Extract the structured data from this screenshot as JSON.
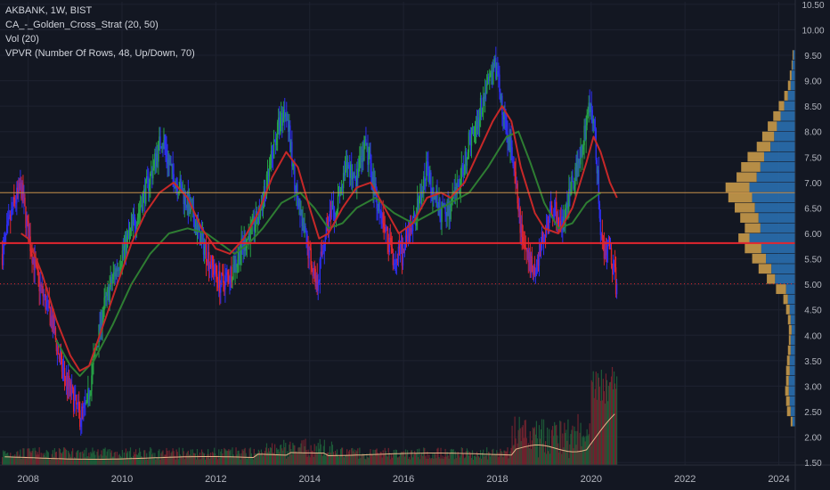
{
  "legend": {
    "symbol": "AKBANK, 1W, BIST",
    "indicator1": "CA_-_Golden_Cross_Strat (20, 50)",
    "indicator2": "Vol (20)",
    "indicator3": "VPVR (Number Of Rows, 48, Up/Down, 70)"
  },
  "colors": {
    "background": "#131722",
    "grid": "#1e2230",
    "axis_text": "#b2b5be",
    "up_candle": "#26a146",
    "down_candle": "#e3262f",
    "neutral_candle": "#2d2ef0",
    "ma_fast": "#c62828",
    "ma_slow": "#2e7d32",
    "vol_ma": "#e8b48a",
    "vpvr_up": "#2a6fb0",
    "vpvr_down": "#d4a24c",
    "line_680": "#c8914a",
    "line_581": "#e3262f",
    "line_501": "#e3262f"
  },
  "chart_data": {
    "type": "candlestick",
    "x_axis": {
      "ticks": [
        "2008",
        "2010",
        "2012",
        "2014",
        "2016",
        "2018",
        "2020",
        "2022",
        "2024"
      ],
      "range": [
        2007.4,
        2024.35
      ]
    },
    "y_axis": {
      "ticks": [
        "1.50",
        "2.00",
        "2.50",
        "3.00",
        "3.50",
        "4.00",
        "4.50",
        "5.00",
        "5.50",
        "6.00",
        "6.50",
        "7.00",
        "7.50",
        "8.00",
        "8.50",
        "9.00",
        "9.50",
        "10.00",
        "10.50"
      ],
      "range": [
        1.45,
        10.55
      ]
    },
    "price_path": [
      [
        2007.45,
        5.6
      ],
      [
        2007.7,
        6.6
      ],
      [
        2007.85,
        6.9
      ],
      [
        2008.0,
        6.0
      ],
      [
        2008.2,
        5.1
      ],
      [
        2008.5,
        4.3
      ],
      [
        2008.7,
        3.4
      ],
      [
        2008.9,
        2.9
      ],
      [
        2009.1,
        2.4
      ],
      [
        2009.25,
        2.6
      ],
      [
        2009.4,
        3.5
      ],
      [
        2009.6,
        4.5
      ],
      [
        2009.8,
        5.1
      ],
      [
        2010.0,
        5.6
      ],
      [
        2010.3,
        6.3
      ],
      [
        2010.6,
        7.1
      ],
      [
        2010.85,
        7.9
      ],
      [
        2011.05,
        7.2
      ],
      [
        2011.3,
        6.8
      ],
      [
        2011.6,
        6.1
      ],
      [
        2011.9,
        5.4
      ],
      [
        2012.1,
        5.0
      ],
      [
        2012.3,
        5.2
      ],
      [
        2012.6,
        5.8
      ],
      [
        2012.9,
        6.3
      ],
      [
        2013.1,
        7.0
      ],
      [
        2013.3,
        8.0
      ],
      [
        2013.5,
        8.5
      ],
      [
        2013.6,
        7.6
      ],
      [
        2013.8,
        6.3
      ],
      [
        2014.0,
        5.6
      ],
      [
        2014.15,
        5.0
      ],
      [
        2014.35,
        6.1
      ],
      [
        2014.6,
        6.6
      ],
      [
        2014.8,
        7.3
      ],
      [
        2015.0,
        7.1
      ],
      [
        2015.2,
        7.7
      ],
      [
        2015.4,
        6.8
      ],
      [
        2015.6,
        6.1
      ],
      [
        2015.8,
        5.5
      ],
      [
        2016.0,
        5.6
      ],
      [
        2016.2,
        6.2
      ],
      [
        2016.4,
        6.8
      ],
      [
        2016.5,
        7.3
      ],
      [
        2016.6,
        6.9
      ],
      [
        2016.8,
        6.4
      ],
      [
        2017.0,
        6.5
      ],
      [
        2017.2,
        7.0
      ],
      [
        2017.4,
        7.8
      ],
      [
        2017.6,
        8.3
      ],
      [
        2017.8,
        9.0
      ],
      [
        2018.0,
        9.3
      ],
      [
        2018.1,
        8.4
      ],
      [
        2018.3,
        7.6
      ],
      [
        2018.5,
        6.1
      ],
      [
        2018.65,
        5.5
      ],
      [
        2018.8,
        5.3
      ],
      [
        2019.0,
        6.0
      ],
      [
        2019.2,
        6.5
      ],
      [
        2019.4,
        6.1
      ],
      [
        2019.6,
        7.0
      ],
      [
        2019.8,
        7.7
      ],
      [
        2019.9,
        8.2
      ],
      [
        2020.0,
        8.6
      ],
      [
        2020.1,
        7.7
      ],
      [
        2020.2,
        6.1
      ],
      [
        2020.3,
        5.6
      ],
      [
        2020.4,
        5.7
      ],
      [
        2020.55,
        4.9
      ]
    ],
    "ma_fast": [
      [
        2007.85,
        6.0
      ],
      [
        2008.0,
        5.9
      ],
      [
        2008.3,
        5.2
      ],
      [
        2008.6,
        4.3
      ],
      [
        2008.9,
        3.6
      ],
      [
        2009.1,
        3.3
      ],
      [
        2009.3,
        3.4
      ],
      [
        2009.6,
        4.2
      ],
      [
        2009.9,
        5.0
      ],
      [
        2010.2,
        5.8
      ],
      [
        2010.5,
        6.4
      ],
      [
        2010.8,
        6.8
      ],
      [
        2011.1,
        7.0
      ],
      [
        2011.4,
        6.7
      ],
      [
        2011.7,
        6.1
      ],
      [
        2012.0,
        5.7
      ],
      [
        2012.3,
        5.6
      ],
      [
        2012.6,
        5.9
      ],
      [
        2012.9,
        6.4
      ],
      [
        2013.2,
        7.1
      ],
      [
        2013.5,
        7.6
      ],
      [
        2013.75,
        7.3
      ],
      [
        2014.0,
        6.5
      ],
      [
        2014.2,
        5.9
      ],
      [
        2014.4,
        6.0
      ],
      [
        2014.7,
        6.5
      ],
      [
        2015.0,
        6.9
      ],
      [
        2015.3,
        7.0
      ],
      [
        2015.6,
        6.5
      ],
      [
        2015.9,
        6.0
      ],
      [
        2016.2,
        6.2
      ],
      [
        2016.5,
        6.7
      ],
      [
        2016.8,
        6.8
      ],
      [
        2017.0,
        6.7
      ],
      [
        2017.3,
        7.0
      ],
      [
        2017.6,
        7.6
      ],
      [
        2017.9,
        8.2
      ],
      [
        2018.1,
        8.5
      ],
      [
        2018.3,
        8.2
      ],
      [
        2018.5,
        7.3
      ],
      [
        2018.8,
        6.4
      ],
      [
        2019.0,
        6.1
      ],
      [
        2019.3,
        6.0
      ],
      [
        2019.6,
        6.5
      ],
      [
        2019.9,
        7.4
      ],
      [
        2020.05,
        7.9
      ],
      [
        2020.2,
        7.6
      ],
      [
        2020.4,
        7.0
      ],
      [
        2020.55,
        6.7
      ]
    ],
    "ma_slow": [
      [
        2008.6,
        3.9
      ],
      [
        2008.9,
        3.4
      ],
      [
        2009.1,
        3.2
      ],
      [
        2009.4,
        3.5
      ],
      [
        2009.8,
        4.2
      ],
      [
        2010.2,
        5.0
      ],
      [
        2010.6,
        5.6
      ],
      [
        2011.0,
        6.0
      ],
      [
        2011.4,
        6.1
      ],
      [
        2011.8,
        6.0
      ],
      [
        2012.1,
        5.8
      ],
      [
        2012.4,
        5.6
      ],
      [
        2012.7,
        5.8
      ],
      [
        2013.0,
        6.1
      ],
      [
        2013.4,
        6.6
      ],
      [
        2013.8,
        6.8
      ],
      [
        2014.1,
        6.5
      ],
      [
        2014.4,
        6.1
      ],
      [
        2014.7,
        6.2
      ],
      [
        2015.0,
        6.5
      ],
      [
        2015.4,
        6.7
      ],
      [
        2015.8,
        6.4
      ],
      [
        2016.2,
        6.2
      ],
      [
        2016.6,
        6.4
      ],
      [
        2017.0,
        6.6
      ],
      [
        2017.4,
        6.8
      ],
      [
        2017.8,
        7.3
      ],
      [
        2018.2,
        7.9
      ],
      [
        2018.45,
        8.0
      ],
      [
        2018.7,
        7.4
      ],
      [
        2019.0,
        6.6
      ],
      [
        2019.3,
        6.1
      ],
      [
        2019.6,
        6.2
      ],
      [
        2019.9,
        6.6
      ],
      [
        2020.2,
        6.8
      ]
    ],
    "horizontal_lines": [
      {
        "price": 6.8,
        "label": "6.80",
        "style": "solid"
      },
      {
        "price": 5.81,
        "label": "5.81",
        "style": "solid"
      },
      {
        "price": 5.01,
        "label": "5.01",
        "style": "dotted"
      }
    ],
    "volume_profile": {
      "price_step": 0.2,
      "rows": [
        [
          2.2,
          0.05,
          0.03
        ],
        [
          2.4,
          0.09,
          0.05
        ],
        [
          2.6,
          0.1,
          0.06
        ],
        [
          2.8,
          0.11,
          0.07
        ],
        [
          3.0,
          0.1,
          0.07
        ],
        [
          3.2,
          0.1,
          0.06
        ],
        [
          3.4,
          0.09,
          0.06
        ],
        [
          3.6,
          0.08,
          0.05
        ],
        [
          3.8,
          0.07,
          0.05
        ],
        [
          4.0,
          0.07,
          0.04
        ],
        [
          4.2,
          0.08,
          0.05
        ],
        [
          4.4,
          0.1,
          0.06
        ],
        [
          4.6,
          0.13,
          0.08
        ],
        [
          4.8,
          0.21,
          0.1
        ],
        [
          5.0,
          0.31,
          0.22
        ],
        [
          5.2,
          0.4,
          0.26
        ],
        [
          5.4,
          0.47,
          0.32
        ],
        [
          5.6,
          0.55,
          0.37
        ],
        [
          5.8,
          0.62,
          0.5
        ],
        [
          6.0,
          0.55,
          0.38
        ],
        [
          6.2,
          0.6,
          0.4
        ],
        [
          6.4,
          0.66,
          0.44
        ],
        [
          6.6,
          0.73,
          0.47
        ],
        [
          6.8,
          0.76,
          0.5
        ],
        [
          7.0,
          0.64,
          0.42
        ],
        [
          7.2,
          0.59,
          0.38
        ],
        [
          7.4,
          0.52,
          0.34
        ],
        [
          7.6,
          0.42,
          0.27
        ],
        [
          7.8,
          0.36,
          0.23
        ],
        [
          8.0,
          0.3,
          0.2
        ],
        [
          8.2,
          0.24,
          0.16
        ],
        [
          8.4,
          0.18,
          0.12
        ],
        [
          8.6,
          0.12,
          0.08
        ],
        [
          8.8,
          0.08,
          0.05
        ],
        [
          9.0,
          0.06,
          0.04
        ],
        [
          9.2,
          0.04,
          0.03
        ],
        [
          9.4,
          0.03,
          0.02
        ]
      ]
    }
  }
}
